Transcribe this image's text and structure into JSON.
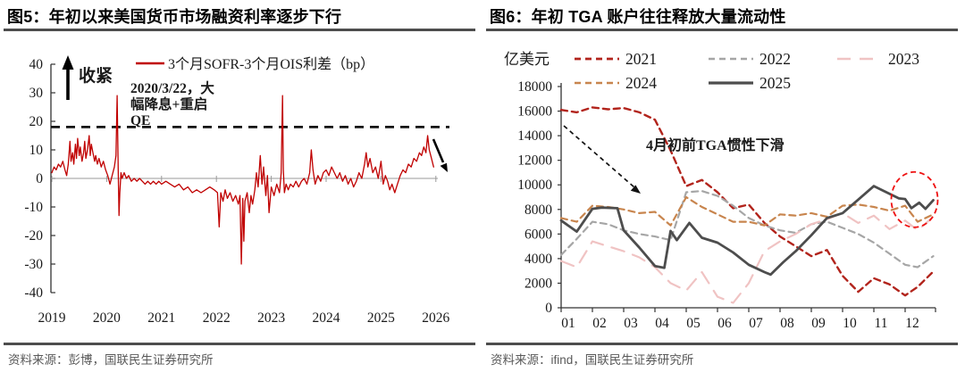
{
  "panels": {
    "left": {
      "title": "图5：年初以来美国货币市场融资利率逐步下行",
      "source": "资料来源：彭博，国联民生证券研究所"
    },
    "right": {
      "title": "图6：年初 TGA 账户往往释放大量流动性",
      "source": "资料来源：ifind，国联民生证券研究所"
    }
  },
  "chart_data": [
    {
      "type": "line",
      "title": "图5：年初以来美国货币市场融资利率逐步下行",
      "legend": [
        {
          "label": "3个月SOFR-3个月OIS利差（bp）",
          "color": "#c00000"
        }
      ],
      "ylim": [
        -40,
        40
      ],
      "yticks": [
        40,
        30,
        20,
        10,
        0,
        -10,
        -20,
        -30,
        -40
      ],
      "xticks": [
        2019,
        2020,
        2021,
        2022,
        2023,
        2024,
        2025,
        2026
      ],
      "grid": "zero-line-only",
      "refline": {
        "value": 18,
        "color": "#141414",
        "style": "dashed"
      },
      "annotations": {
        "tighten_label": "收紧",
        "event_lines": [
          "2020/3/22，大",
          "幅降息+重启",
          "QE"
        ],
        "end_trend": "down-arrow"
      },
      "series": [
        {
          "name": "3个月SOFR-3个月OIS利差（bp）",
          "color": "#c00000",
          "points": [
            [
              2019.0,
              2
            ],
            [
              2019.04,
              4
            ],
            [
              2019.08,
              3
            ],
            [
              2019.12,
              5
            ],
            [
              2019.16,
              4
            ],
            [
              2019.2,
              6
            ],
            [
              2019.24,
              3
            ],
            [
              2019.27,
              1
            ],
            [
              2019.3,
              5
            ],
            [
              2019.33,
              13
            ],
            [
              2019.35,
              6
            ],
            [
              2019.38,
              9
            ],
            [
              2019.4,
              5
            ],
            [
              2019.43,
              12
            ],
            [
              2019.45,
              7
            ],
            [
              2019.47,
              14
            ],
            [
              2019.5,
              8
            ],
            [
              2019.52,
              11
            ],
            [
              2019.55,
              6
            ],
            [
              2019.58,
              9
            ],
            [
              2019.6,
              13
            ],
            [
              2019.62,
              7
            ],
            [
              2019.65,
              10
            ],
            [
              2019.68,
              15
            ],
            [
              2019.7,
              8
            ],
            [
              2019.72,
              12
            ],
            [
              2019.75,
              9
            ],
            [
              2019.78,
              6
            ],
            [
              2019.8,
              8
            ],
            [
              2019.83,
              5
            ],
            [
              2019.86,
              7
            ],
            [
              2019.9,
              4
            ],
            [
              2019.94,
              6
            ],
            [
              2019.98,
              3
            ],
            [
              2020.02,
              1
            ],
            [
              2020.06,
              -2
            ],
            [
              2020.1,
              1
            ],
            [
              2020.14,
              4
            ],
            [
              2020.17,
              8
            ],
            [
              2020.19,
              29
            ],
            [
              2020.21,
              3
            ],
            [
              2020.225,
              -13
            ],
            [
              2020.24,
              -5
            ],
            [
              2020.26,
              2
            ],
            [
              2020.28,
              0
            ],
            [
              2020.32,
              2
            ],
            [
              2020.36,
              0
            ],
            [
              2020.4,
              1
            ],
            [
              2020.45,
              -1
            ],
            [
              2020.5,
              0
            ],
            [
              2020.55,
              -1
            ],
            [
              2020.6,
              0
            ],
            [
              2020.65,
              -1
            ],
            [
              2020.7,
              -2
            ],
            [
              2020.75,
              -1
            ],
            [
              2020.8,
              -2
            ],
            [
              2020.85,
              -1
            ],
            [
              2020.9,
              -2
            ],
            [
              2020.95,
              -1
            ],
            [
              2021.0,
              -2
            ],
            [
              2021.08,
              -1
            ],
            [
              2021.16,
              -2
            ],
            [
              2021.24,
              -3
            ],
            [
              2021.32,
              -2
            ],
            [
              2021.4,
              -4
            ],
            [
              2021.48,
              -3
            ],
            [
              2021.56,
              -5
            ],
            [
              2021.64,
              -4
            ],
            [
              2021.72,
              -5
            ],
            [
              2021.8,
              -4
            ],
            [
              2021.88,
              -3
            ],
            [
              2021.96,
              -4
            ],
            [
              2022.02,
              -5
            ],
            [
              2022.05,
              -17
            ],
            [
              2022.08,
              -5
            ],
            [
              2022.12,
              -8
            ],
            [
              2022.16,
              -4
            ],
            [
              2022.2,
              -7
            ],
            [
              2022.25,
              -5
            ],
            [
              2022.3,
              -8
            ],
            [
              2022.35,
              -6
            ],
            [
              2022.4,
              -9
            ],
            [
              2022.43,
              -6
            ],
            [
              2022.455,
              -30
            ],
            [
              2022.48,
              -7
            ],
            [
              2022.5,
              -22
            ],
            [
              2022.52,
              -8
            ],
            [
              2022.56,
              -5
            ],
            [
              2022.6,
              -12
            ],
            [
              2022.63,
              -6
            ],
            [
              2022.66,
              -9
            ],
            [
              2022.7,
              -4
            ],
            [
              2022.73,
              2
            ],
            [
              2022.76,
              -3
            ],
            [
              2022.8,
              8
            ],
            [
              2022.83,
              -2
            ],
            [
              2022.86,
              4
            ],
            [
              2022.9,
              -6
            ],
            [
              2022.93,
              1
            ],
            [
              2022.96,
              -12
            ],
            [
              2023.0,
              -3
            ],
            [
              2023.05,
              -6
            ],
            [
              2023.1,
              -2
            ],
            [
              2023.15,
              -5
            ],
            [
              2023.18,
              2
            ],
            [
              2023.205,
              29
            ],
            [
              2023.22,
              3
            ],
            [
              2023.24,
              -5
            ],
            [
              2023.27,
              -2
            ],
            [
              2023.31,
              -4
            ],
            [
              2023.35,
              -2
            ],
            [
              2023.4,
              -3
            ],
            [
              2023.45,
              -1
            ],
            [
              2023.5,
              -3
            ],
            [
              2023.55,
              -1
            ],
            [
              2023.6,
              0
            ],
            [
              2023.65,
              -2
            ],
            [
              2023.7,
              2
            ],
            [
              2023.73,
              10
            ],
            [
              2023.76,
              3
            ],
            [
              2023.8,
              -2
            ],
            [
              2023.85,
              1
            ],
            [
              2023.9,
              -1
            ],
            [
              2023.95,
              2
            ],
            [
              2024.0,
              3
            ],
            [
              2024.05,
              1
            ],
            [
              2024.1,
              4
            ],
            [
              2024.15,
              2
            ],
            [
              2024.2,
              0
            ],
            [
              2024.25,
              2
            ],
            [
              2024.3,
              -1
            ],
            [
              2024.35,
              1
            ],
            [
              2024.4,
              -2
            ],
            [
              2024.45,
              0
            ],
            [
              2024.5,
              -3
            ],
            [
              2024.55,
              -1
            ],
            [
              2024.6,
              2
            ],
            [
              2024.65,
              0
            ],
            [
              2024.7,
              5
            ],
            [
              2024.73,
              9
            ],
            [
              2024.76,
              4
            ],
            [
              2024.8,
              7
            ],
            [
              2024.85,
              2
            ],
            [
              2024.9,
              4
            ],
            [
              2024.95,
              0
            ],
            [
              2025.0,
              6
            ],
            [
              2025.04,
              -2
            ],
            [
              2025.08,
              1
            ],
            [
              2025.12,
              -1
            ],
            [
              2025.16,
              -4
            ],
            [
              2025.2,
              -2
            ],
            [
              2025.25,
              -5
            ],
            [
              2025.3,
              -2
            ],
            [
              2025.35,
              1
            ],
            [
              2025.4,
              3
            ],
            [
              2025.45,
              2
            ],
            [
              2025.5,
              5
            ],
            [
              2025.55,
              4
            ],
            [
              2025.6,
              7
            ],
            [
              2025.65,
              6
            ],
            [
              2025.7,
              9
            ],
            [
              2025.74,
              8
            ],
            [
              2025.78,
              11
            ],
            [
              2025.82,
              9
            ],
            [
              2025.85,
              15
            ],
            [
              2025.88,
              10
            ],
            [
              2025.92,
              7
            ],
            [
              2025.96,
              4
            ]
          ]
        }
      ]
    },
    {
      "type": "line",
      "title": "图6：年初 TGA 账户往往释放大量流动性",
      "ylabel": "亿美元",
      "ylim": [
        0,
        18000
      ],
      "yticks": [
        18000,
        16000,
        14000,
        12000,
        10000,
        8000,
        6000,
        4000,
        2000,
        0
      ],
      "xticks": [
        "01",
        "02",
        "03",
        "04",
        "05",
        "06",
        "07",
        "08",
        "09",
        "10",
        "11",
        "12"
      ],
      "annotation": "4月初前TGA惯性下滑",
      "legend_rows": [
        [
          "2021",
          "2022",
          "2023"
        ],
        [
          "2024",
          "2025"
        ]
      ],
      "highlight_circle": {
        "month": 12.3,
        "value": 8800,
        "color": "#ee1111"
      },
      "series": [
        {
          "name": "2021",
          "color": "#b2241c",
          "dash": "7 5",
          "width": 2.4,
          "x": [
            1,
            1.5,
            2,
            2.5,
            3,
            3.5,
            4,
            4.5,
            5,
            5.5,
            6,
            6.5,
            7,
            7.5,
            8,
            8.5,
            9,
            9.5,
            10,
            10.5,
            11,
            11.5,
            12,
            12.4,
            12.9
          ],
          "y": [
            16100,
            15900,
            16300,
            16150,
            16250,
            15900,
            15300,
            12800,
            9900,
            10400,
            9400,
            8100,
            8400,
            6900,
            5800,
            5000,
            4200,
            4700,
            2600,
            1300,
            2400,
            1900,
            1000,
            1700,
            2950
          ]
        },
        {
          "name": "2022",
          "color": "#a6a6a6",
          "dash": "7 5",
          "width": 2.2,
          "x": [
            1,
            1.5,
            2,
            2.5,
            3,
            3.5,
            4,
            4.5,
            5,
            5.5,
            6,
            6.5,
            7,
            7.5,
            8,
            8.5,
            9,
            9.5,
            10,
            10.5,
            11,
            11.5,
            12,
            12.4,
            12.9
          ],
          "y": [
            4300,
            5600,
            7000,
            6800,
            6300,
            6000,
            5800,
            5500,
            9400,
            9500,
            9100,
            8300,
            7300,
            6700,
            6300,
            6100,
            6800,
            7000,
            6500,
            6000,
            5300,
            4400,
            3500,
            3300,
            4200
          ]
        },
        {
          "name": "2023",
          "color": "#f0c3c3",
          "dash": "15 10",
          "width": 2.2,
          "x": [
            1,
            1.5,
            2,
            2.5,
            3,
            3.5,
            4,
            4.5,
            5,
            5.5,
            6,
            6.5,
            7,
            7.5,
            8,
            8.5,
            9,
            9.5,
            10,
            10.5,
            11,
            11.5,
            12,
            12.4,
            12.9
          ],
          "y": [
            3800,
            3300,
            5400,
            5000,
            4600,
            4100,
            3300,
            2000,
            1400,
            2900,
            900,
            400,
            2000,
            4600,
            5400,
            6000,
            6800,
            7200,
            7700,
            6900,
            7500,
            6400,
            7100,
            6300,
            7400
          ]
        },
        {
          "name": "2024",
          "color": "#c8854e",
          "dash": "7 5",
          "width": 2.2,
          "x": [
            1,
            1.5,
            2,
            2.5,
            3,
            3.5,
            4,
            4.5,
            5,
            5.5,
            6,
            6.5,
            7,
            7.5,
            8,
            8.5,
            9,
            9.5,
            10,
            10.5,
            11,
            11.5,
            12,
            12.4,
            12.9
          ],
          "y": [
            7300,
            7000,
            8300,
            8200,
            8000,
            7700,
            7800,
            6700,
            9000,
            8200,
            7600,
            7000,
            7000,
            6700,
            7600,
            7500,
            7700,
            7400,
            8300,
            8400,
            8200,
            7900,
            8300,
            7000,
            7600
          ]
        },
        {
          "name": "2025",
          "color": "#4d4d4d",
          "dash": null,
          "width": 2.8,
          "x": [
            1,
            1.5,
            2,
            2.3,
            2.8,
            3,
            3.5,
            4,
            4.3,
            4.5,
            4.7,
            5.1,
            5.5,
            6,
            6.5,
            7,
            7.5,
            7.7,
            8.1,
            8.5,
            9,
            9.5,
            10,
            10.5,
            11,
            11.4,
            11.8,
            12,
            12.2,
            12.45,
            12.65,
            12.9
          ],
          "y": [
            7100,
            6200,
            8050,
            8150,
            8100,
            6300,
            4900,
            3400,
            3250,
            6250,
            5500,
            6900,
            5700,
            5300,
            4500,
            3500,
            2900,
            2700,
            3700,
            4600,
            5900,
            7300,
            7700,
            8800,
            9900,
            9400,
            8900,
            8850,
            8100,
            8550,
            8050,
            8750
          ]
        }
      ]
    }
  ]
}
